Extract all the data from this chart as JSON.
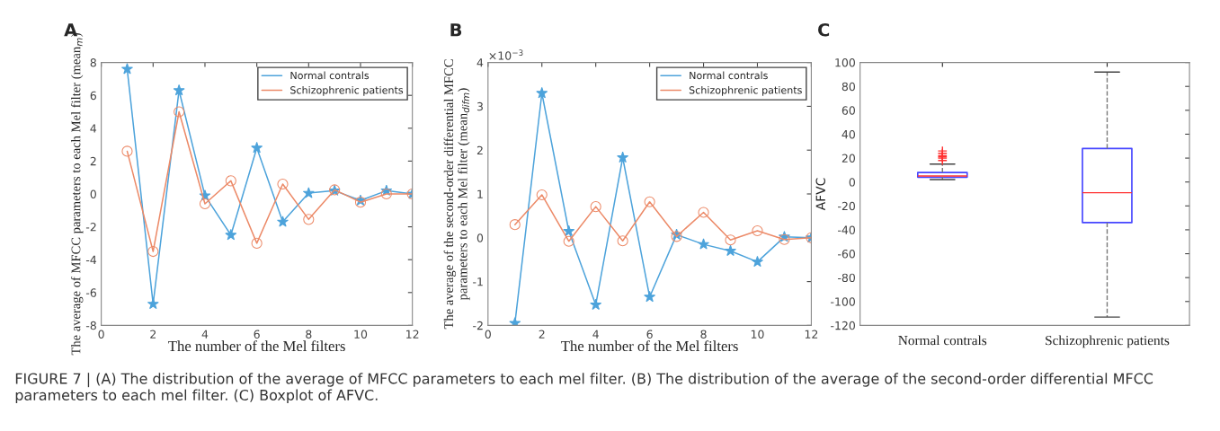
{
  "chart_data": [
    {
      "type": "line",
      "title": "A",
      "xlabel": "The number of the Mel filters",
      "ylabel": "The average of MFCC parameters to each Mel filter (mean$_{m}$)",
      "x": [
        1,
        2,
        3,
        4,
        5,
        6,
        7,
        8,
        9,
        10,
        11,
        12
      ],
      "xlim": [
        0,
        12
      ],
      "xticks": [
        0,
        2,
        4,
        6,
        8,
        10,
        12
      ],
      "ylim": [
        -8,
        8
      ],
      "yticks": [
        -8,
        -6,
        -4,
        -2,
        0,
        2,
        4,
        6,
        8
      ],
      "legend": "top right",
      "grid": false,
      "series": [
        {
          "name": "Normal contrals",
          "color": "#4da3db",
          "marker": "star",
          "values": [
            7.6,
            -6.7,
            6.3,
            -0.1,
            -2.5,
            2.8,
            -1.7,
            0.05,
            0.2,
            -0.4,
            0.2,
            0.0
          ]
        },
        {
          "name": "Schizophrenic patients",
          "color": "#ec8a68",
          "marker": "circle",
          "values": [
            2.6,
            -3.5,
            5.0,
            -0.6,
            0.8,
            -3.0,
            0.6,
            -1.55,
            0.25,
            -0.5,
            0.0,
            0.0
          ]
        }
      ],
      "annotations": [
        "FIGURE 7 | (A) The distribution of the average of MFCC parameters to each mel filter. (B) The distribution of the average of the second-order differential MFCC parameters to each mel filter. (C) Boxplot of AFVC."
      ]
    },
    {
      "type": "line",
      "title": "B",
      "xlabel": "The number of the Mel filters",
      "ylabel": "The average of the second-order differential MFCC\nparameters to each Mel filter (mean$_{difm}$)",
      "x": [
        1,
        2,
        3,
        4,
        5,
        6,
        7,
        8,
        9,
        10,
        11,
        12
      ],
      "xlim": [
        0,
        12
      ],
      "xticks": [
        0,
        2,
        4,
        6,
        8,
        10,
        12
      ],
      "ylim": [
        -2,
        4
      ],
      "yticks": [
        -2,
        -1,
        0,
        1,
        2,
        3,
        4
      ],
      "legend": "top right",
      "grid": false,
      "series": [
        {
          "name": "Normal contrals",
          "color": "#4da3db",
          "marker": "star",
          "values": [
            -1.95,
            3.3,
            0.15,
            -1.53,
            1.83,
            -1.35,
            0.07,
            -0.15,
            -0.3,
            -0.55,
            0.02,
            0.0
          ]
        },
        {
          "name": "Schizophrenic patients",
          "color": "#ec8a68",
          "marker": "circle",
          "values": [
            0.3,
            0.98,
            -0.08,
            0.71,
            -0.07,
            0.82,
            0.03,
            0.58,
            -0.05,
            0.16,
            -0.04,
            0.0
          ]
        }
      ],
      "annotations": [
        "×10$^{−3}$"
      ]
    },
    {
      "type": "box",
      "title": "C",
      "ylabel": "AFVC",
      "categories": [
        "Normal contrals",
        "Schizophrenic patients"
      ],
      "ylim": [
        -120,
        100
      ],
      "yticks": [
        -120,
        -100,
        -80,
        -60,
        -40,
        -20,
        0,
        20,
        40,
        60,
        80,
        100
      ],
      "grid": false,
      "series": [
        {
          "color": "#4646ff",
          "boxes": [
            {
              "low": 2,
              "q1": 4,
              "median": 5,
              "q3": 8,
              "high": 15,
              "outliers": [
                18,
                20,
                21,
                22,
                24,
                26
              ]
            },
            {
              "low": -113,
              "q1": -34,
              "median": -9,
              "q3": 28,
              "high": 92
            }
          ]
        }
      ]
    }
  ]
}
